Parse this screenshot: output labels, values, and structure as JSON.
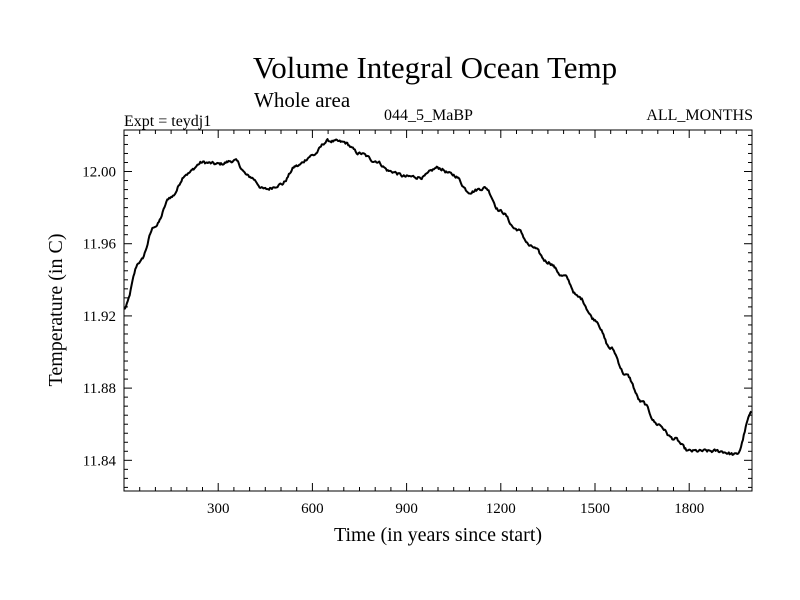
{
  "header": {
    "title": "Volume Integral Ocean Temp",
    "subtitle": "Whole area",
    "experiment": "Expt = teydj1",
    "run_label": "044_5_MaBP",
    "months_label": "ALL_MONTHS"
  },
  "chart_data": {
    "type": "line",
    "title": "Volume Integral Ocean Temp",
    "subtitle": "Whole area",
    "xlabel": "Time (in years since start)",
    "ylabel": "Temperature (in C)",
    "xlim": [
      0,
      2000
    ],
    "ylim": [
      11.823,
      12.023
    ],
    "x_ticks": [
      300,
      600,
      900,
      1200,
      1500,
      1800
    ],
    "y_ticks": [
      11.84,
      11.88,
      11.92,
      11.96,
      12.0
    ],
    "y_tick_labels": [
      "11.84",
      "11.88",
      "11.92",
      "11.96",
      "12.00"
    ],
    "grid": false,
    "series": [
      {
        "name": "Volume integral ocean temperature",
        "x": [
          0,
          50,
          100,
          150,
          200,
          250,
          300,
          350,
          400,
          450,
          500,
          550,
          600,
          650,
          700,
          750,
          800,
          850,
          900,
          950,
          1000,
          1050,
          1100,
          1150,
          1200,
          1250,
          1300,
          1350,
          1400,
          1450,
          1500,
          1550,
          1600,
          1650,
          1700,
          1750,
          1800,
          1850,
          1900,
          1950,
          2000
        ],
        "y": [
          11.924,
          11.95,
          11.97,
          11.986,
          11.999,
          12.005,
          12.004,
          12.006,
          11.997,
          11.99,
          11.993,
          12.003,
          12.009,
          12.017,
          12.016,
          12.01,
          12.006,
          12.0,
          11.997,
          11.997,
          12.002,
          11.998,
          11.989,
          11.991,
          11.978,
          11.968,
          11.958,
          11.95,
          11.942,
          11.93,
          11.918,
          11.902,
          11.887,
          11.872,
          11.86,
          11.852,
          11.845,
          11.845,
          11.845,
          11.843,
          11.866
        ]
      }
    ]
  }
}
